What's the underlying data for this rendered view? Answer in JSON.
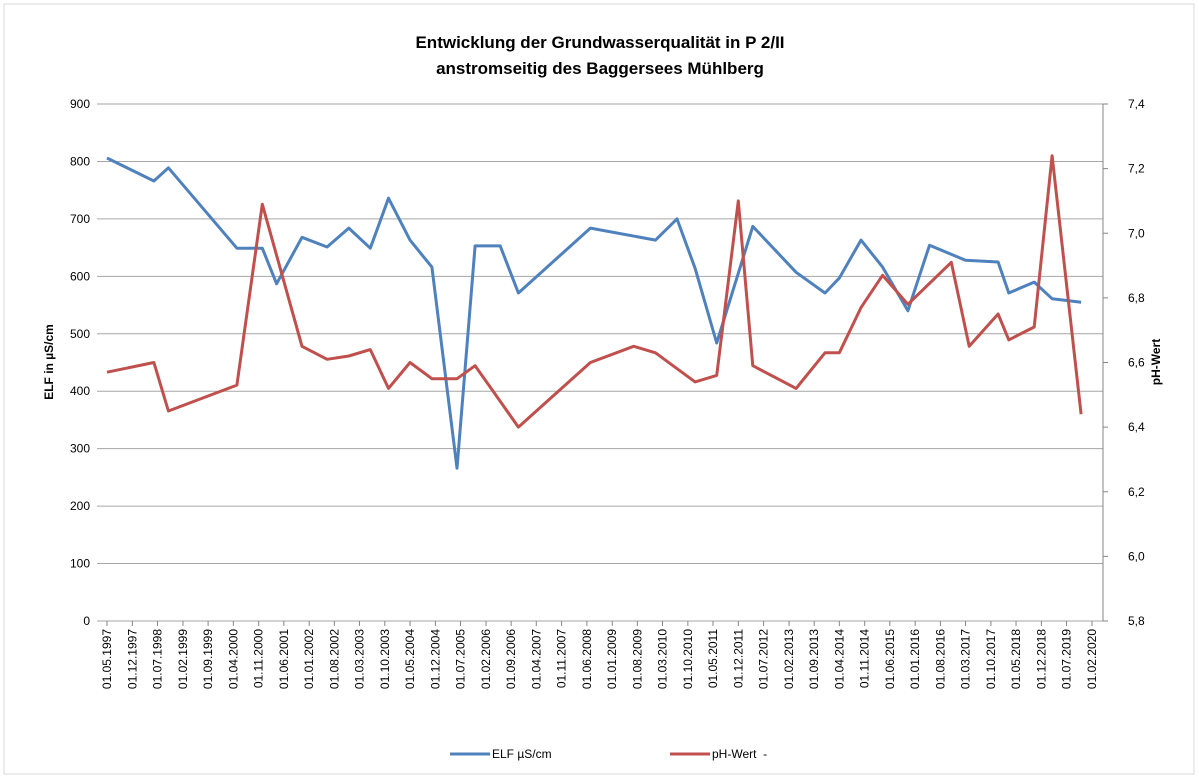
{
  "chart_data": {
    "type": "line",
    "title": [
      "Entwicklung der Grundwasserqualität in P 2/II",
      "anstromseitig des Baggersees Mühlberg"
    ],
    "ylabel": "ELF in µS/cm",
    "y2label": "pH-Wert",
    "xticks": [
      "01.05.1997",
      "01.12.1997",
      "01.07.1998",
      "01.02.1999",
      "01.09.1999",
      "01.04.2000",
      "01.11.2000",
      "01.06.2001",
      "01.01.2002",
      "01.08.2002",
      "01.03.2003",
      "01.10.2003",
      "01.05.2004",
      "01.12.2004",
      "01.07.2005",
      "01.02.2006",
      "01.09.2006",
      "01.04.2007",
      "01.11.2007",
      "01.06.2008",
      "01.01.2009",
      "01.08.2009",
      "01.03.2010",
      "01.10.2010",
      "01.05.2011",
      "01.12.2011",
      "01.07.2012",
      "01.02.2013",
      "01.09.2013",
      "01.04.2014",
      "01.11.2014",
      "01.06.2015",
      "01.01.2016",
      "01.08.2016",
      "01.03.2017",
      "01.10.2017",
      "01.05.2018",
      "01.12.2018",
      "01.07.2019",
      "01.02.2020"
    ],
    "xlim": [
      "01.05.1997",
      "01.02.2020"
    ],
    "ylim": [
      0,
      900
    ],
    "yticks": [
      0,
      100,
      200,
      300,
      400,
      500,
      600,
      700,
      800,
      900
    ],
    "y2lim": [
      5.8,
      7.4
    ],
    "y2ticks": [
      {
        "value": 5.8,
        "label": "5,8"
      },
      {
        "value": 6.0,
        "label": "6,0"
      },
      {
        "value": 6.2,
        "label": "6,2"
      },
      {
        "value": 6.4,
        "label": "6,4"
      },
      {
        "value": 6.6,
        "label": "6,6"
      },
      {
        "value": 6.8,
        "label": "6,8"
      },
      {
        "value": 7.0,
        "label": "7,0"
      },
      {
        "value": 7.2,
        "label": "7,2"
      },
      {
        "value": 7.4,
        "label": "7,4"
      }
    ],
    "grid": true,
    "legend": "bottom",
    "series": [
      {
        "name": "ELF µS/cm",
        "color": "#4f81bd",
        "x": [
          "01.05.1997",
          "01.06.1998",
          "01.10.1998",
          "01.05.2000",
          "01.12.2000",
          "01.04.2001",
          "01.11.2001",
          "01.06.2002",
          "01.12.2002",
          "01.06.2003",
          "01.11.2003",
          "01.05.2004",
          "01.11.2004",
          "01.06.2005",
          "01.11.2005",
          "01.06.2006",
          "01.11.2006",
          "01.07.2008",
          "01.01.2010",
          "01.07.2010",
          "01.12.2010",
          "01.06.2011",
          "01.04.2012",
          "01.04.2013",
          "01.12.2013",
          "01.04.2014",
          "01.10.2014",
          "01.04.2015",
          "01.11.2015",
          "01.05.2016",
          "01.03.2017",
          "01.12.2017",
          "01.03.2018",
          "01.10.2018",
          "01.03.2019",
          "01.11.2019"
        ],
        "values": [
          806,
          766,
          789,
          649,
          649,
          587,
          668,
          651,
          684,
          649,
          736,
          663,
          616,
          266,
          653,
          653,
          571,
          684,
          663,
          700,
          614,
          484,
          687,
          607,
          571,
          597,
          663,
          616,
          540,
          654,
          628,
          625,
          571,
          590,
          561,
          555
        ]
      },
      {
        "name": "pH-Wert  -",
        "color": "#c0504d",
        "axis": "y2",
        "x": [
          "01.05.1997",
          "01.06.1998",
          "01.10.1998",
          "01.05.2000",
          "01.12.2000",
          "01.11.2001",
          "01.06.2002",
          "01.12.2002",
          "01.06.2003",
          "01.11.2003",
          "01.05.2004",
          "01.11.2004",
          "01.06.2005",
          "01.11.2005",
          "01.11.2006",
          "01.07.2008",
          "01.07.2009",
          "01.01.2010",
          "01.12.2010",
          "01.06.2011",
          "01.12.2011",
          "01.04.2012",
          "01.04.2013",
          "01.12.2013",
          "01.04.2014",
          "01.10.2014",
          "01.04.2015",
          "01.11.2015",
          "01.11.2016",
          "01.04.2017",
          "01.12.2017",
          "01.03.2018",
          "01.10.2018",
          "01.03.2019",
          "01.11.2019"
        ],
        "values": [
          6.57,
          6.6,
          6.45,
          6.53,
          7.09,
          6.65,
          6.61,
          6.62,
          6.64,
          6.52,
          6.6,
          6.55,
          6.55,
          6.59,
          6.4,
          6.6,
          6.65,
          6.63,
          6.54,
          6.56,
          7.1,
          6.59,
          6.52,
          6.63,
          6.63,
          6.77,
          6.87,
          6.78,
          6.91,
          6.65,
          6.75,
          6.67,
          6.71,
          7.24,
          6.44
        ]
      }
    ]
  }
}
